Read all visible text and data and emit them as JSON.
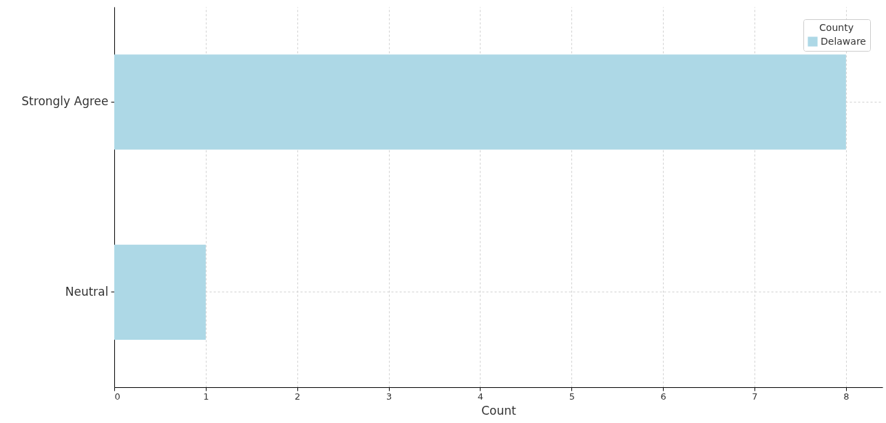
{
  "chart_data": {
    "type": "bar",
    "orientation": "horizontal",
    "xlabel": "Count",
    "legend_title": "County",
    "categories": [
      "Strongly Agree",
      "Neutral"
    ],
    "series": [
      {
        "name": "Delaware",
        "color": "#add8e6",
        "values": [
          8,
          1
        ]
      }
    ],
    "xlim": [
      0,
      8.4
    ],
    "xticks": [
      0,
      1,
      2,
      3,
      4,
      5,
      6,
      7,
      8
    ],
    "grid": true,
    "legend": "top right"
  }
}
